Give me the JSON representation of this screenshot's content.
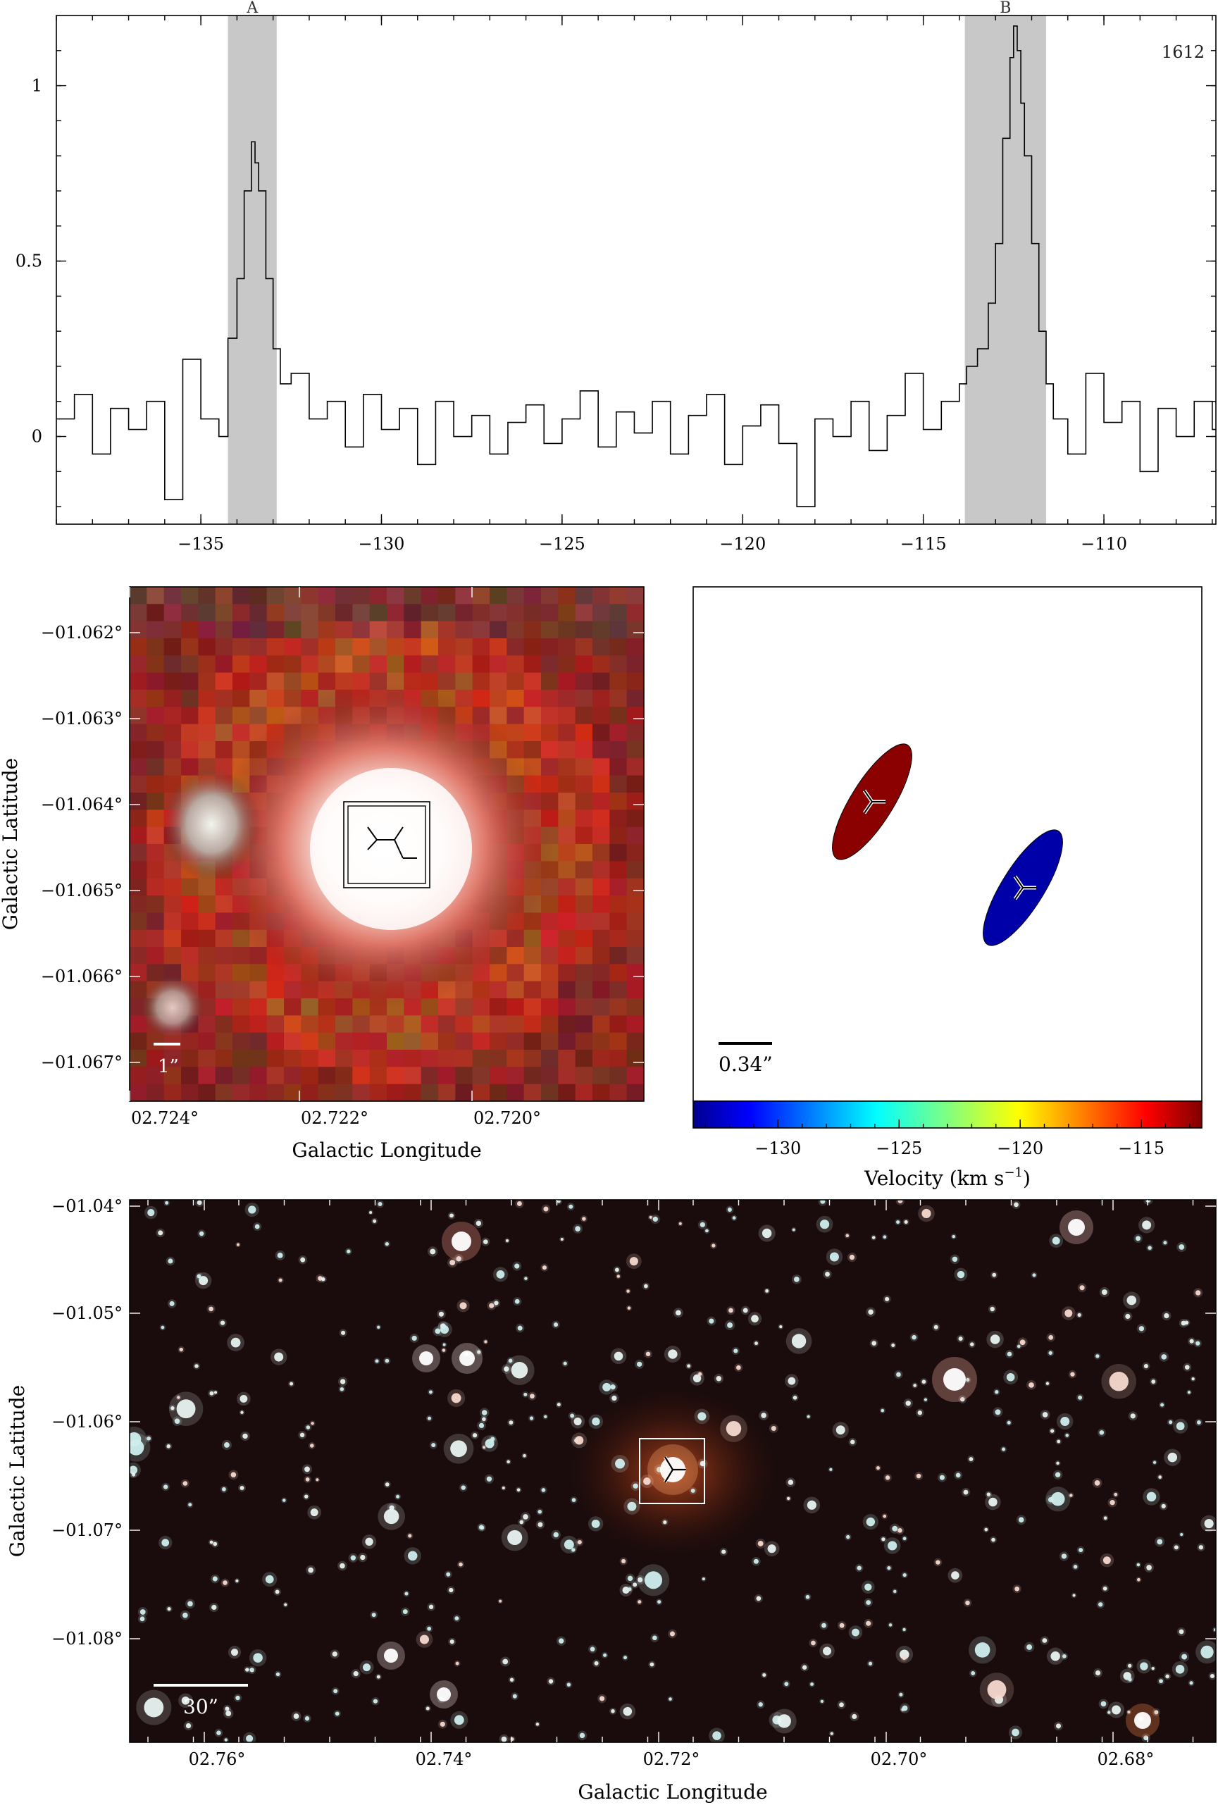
{
  "spectrum": {
    "frequency_label": "1612",
    "x_ticks": [
      "−135",
      "−130",
      "−125",
      "−120",
      "−115",
      "−110"
    ],
    "y_ticks": [
      "0",
      "0.5",
      "1"
    ],
    "regions": [
      {
        "label": "A"
      },
      {
        "label": "B"
      }
    ]
  },
  "chart_data": [
    {
      "type": "line",
      "title": "",
      "xlabel": "",
      "ylabel": "",
      "xlim": [
        -139.0,
        -106.9
      ],
      "ylim": [
        -0.25,
        1.2
      ],
      "grid": false,
      "shaded_regions": [
        {
          "label": "A",
          "x": [
            -134.25,
            -132.9
          ]
        },
        {
          "label": "B",
          "x": [
            -113.85,
            -111.6
          ]
        }
      ],
      "series": [
        {
          "style": "step",
          "x": [
            -139.0,
            -138.5,
            -138.0,
            -137.5,
            -137.0,
            -136.5,
            -136.0,
            -135.5,
            -135.0,
            -134.5,
            -134.25,
            -134.0,
            -133.8,
            -133.6,
            -133.5,
            -133.4,
            -133.2,
            -133.0,
            -132.8,
            -132.5,
            -132.0,
            -131.5,
            -131.0,
            -130.5,
            -130.0,
            -129.5,
            -129.0,
            -128.5,
            -128.0,
            -127.5,
            -127.0,
            -126.5,
            -126.0,
            -125.5,
            -125.0,
            -124.5,
            -124.0,
            -123.5,
            -123.0,
            -122.5,
            -122.0,
            -121.5,
            -121.0,
            -120.5,
            -120.0,
            -119.5,
            -119.0,
            -118.5,
            -118.0,
            -117.5,
            -117.0,
            -116.5,
            -116.0,
            -115.5,
            -115.0,
            -114.5,
            -114.0,
            -113.8,
            -113.5,
            -113.2,
            -113.0,
            -112.8,
            -112.6,
            -112.5,
            -112.4,
            -112.3,
            -112.2,
            -112.0,
            -111.8,
            -111.6,
            -111.4,
            -111.0,
            -110.5,
            -110.0,
            -109.5,
            -109.0,
            -108.5,
            -108.0,
            -107.5,
            -107.0
          ],
          "values": [
            0.05,
            0.12,
            -0.05,
            0.08,
            0.02,
            0.1,
            -0.18,
            0.22,
            0.05,
            0.0,
            0.28,
            0.45,
            0.7,
            0.84,
            0.78,
            0.7,
            0.45,
            0.25,
            0.15,
            0.18,
            0.05,
            0.1,
            -0.03,
            0.12,
            0.02,
            0.08,
            -0.08,
            0.1,
            0.0,
            0.06,
            -0.05,
            0.04,
            0.09,
            -0.02,
            0.05,
            0.13,
            -0.03,
            0.07,
            0.01,
            0.1,
            -0.05,
            0.06,
            0.12,
            -0.08,
            0.03,
            0.09,
            -0.02,
            -0.2,
            0.05,
            0.0,
            0.1,
            -0.04,
            0.06,
            0.18,
            0.02,
            0.1,
            0.15,
            0.2,
            0.25,
            0.38,
            0.55,
            0.85,
            1.08,
            1.17,
            1.1,
            0.95,
            0.8,
            0.55,
            0.3,
            0.15,
            0.05,
            -0.05,
            0.18,
            0.04,
            0.1,
            -0.1,
            0.08,
            0.0,
            0.1,
            0.02
          ]
        }
      ]
    },
    {
      "type": "scatter",
      "title": "",
      "xlabel": "Velocity (km s⁻¹)",
      "colorbar_ticks": [
        -130,
        -125,
        -120,
        -115
      ],
      "colorbar_range": [
        -133.5,
        -112.5
      ],
      "scale_bar_label": "0.34”",
      "series": [
        {
          "velocity": -112.5,
          "color": "#8b0000"
        },
        {
          "velocity": -133.5,
          "color": "#0000a8"
        }
      ]
    }
  ],
  "image_panel": {
    "xlabel": "Galactic Longitude",
    "ylabel": "Galactic Latitude",
    "x_ticks": [
      "02.724°",
      "02.722°",
      "02.720°"
    ],
    "y_ticks": [
      "−01.062°",
      "−01.063°",
      "−01.064°",
      "−01.065°",
      "−01.066°",
      "−01.067°"
    ],
    "scale_bar_label": "1”"
  },
  "colorbar": {
    "label_main": "Velocity (km s",
    "label_sup": "−1",
    "label_close": ")",
    "ticks": [
      "−130",
      "−125",
      "−120",
      "−115"
    ]
  },
  "wide_field": {
    "xlabel": "Galactic Longitude",
    "ylabel": "Galactic Latitude",
    "x_ticks": [
      "02.76°",
      "02.74°",
      "02.72°",
      "02.70°",
      "02.68°"
    ],
    "y_ticks": [
      "−01.04°",
      "−01.05°",
      "−01.06°",
      "−01.07°",
      "−01.08°"
    ],
    "scale_bar_label": "30”"
  },
  "colors": {
    "region_fill": "#c8c8c8",
    "red_ellipse": "#8b0000",
    "blue_ellipse": "#0000a8",
    "field_background": "#1a0c0c"
  }
}
